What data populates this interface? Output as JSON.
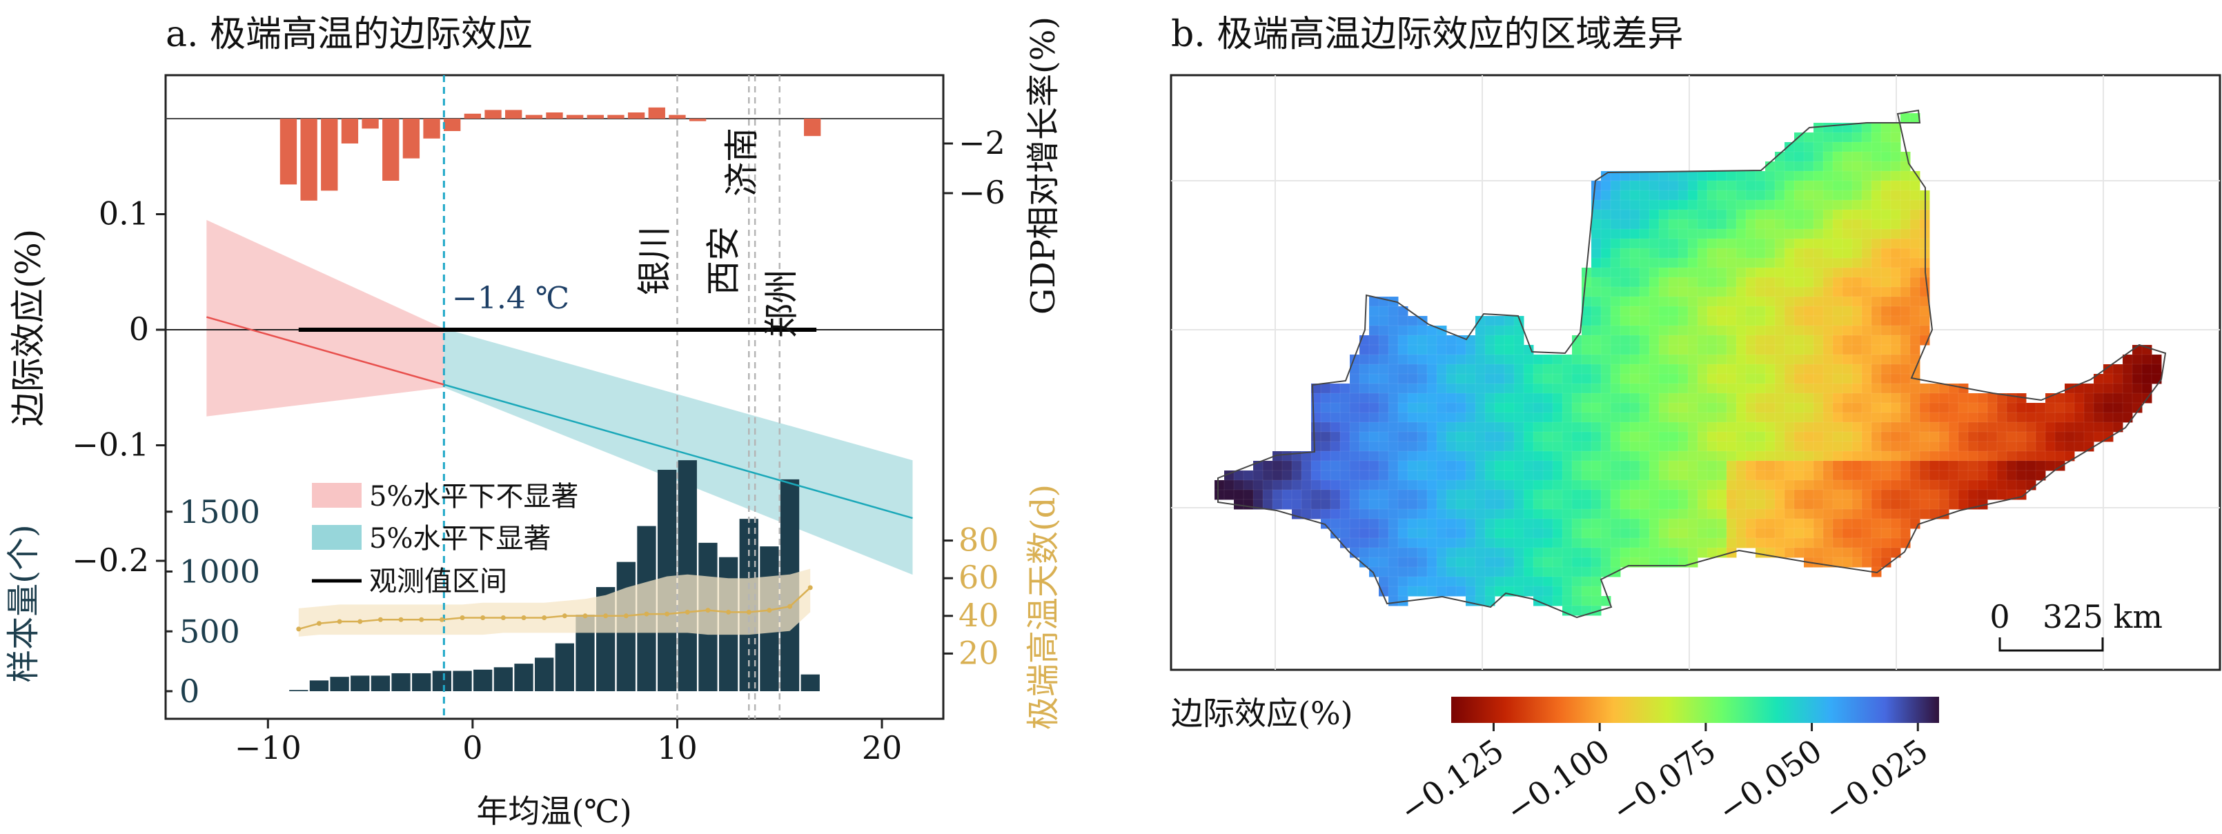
{
  "panel_a": {
    "title": "a. 极端高温的边际效应",
    "chart_data": [
      {
        "type": "line",
        "name": "marginal-effect",
        "xlabel": "年均温(℃)",
        "ylabel": "边际效应(%)",
        "xlim": [
          -15,
          23
        ],
        "ylim": [
          -0.32,
          0.19
        ],
        "x_ticks": [
          -10,
          0,
          10,
          20
        ],
        "x_tick_labels": [
          "−10",
          "0",
          "10",
          "20"
        ],
        "y_ticks": [
          0.1,
          0,
          -0.1,
          -0.2
        ],
        "y_tick_labels": [
          "0.1",
          "0",
          "−0.1",
          "−0.2"
        ],
        "fit_line": {
          "x": [
            -13,
            21.5
          ],
          "y": [
            0.011,
            -0.163
          ]
        },
        "threshold": {
          "x": -1.4,
          "label": "−1.4 ℃"
        },
        "ci_not_significant": {
          "x": [
            -13,
            -1.4
          ],
          "upper": [
            0.095,
            0.001
          ],
          "lower": [
            -0.075,
            -0.05
          ]
        },
        "ci_significant": {
          "x": [
            -1.4,
            21.5
          ],
          "upper": [
            0.001,
            -0.113
          ],
          "lower": [
            -0.05,
            -0.212
          ]
        },
        "observed_range": {
          "x": [
            -8.5,
            16.8
          ],
          "y": 0
        },
        "cities": [
          {
            "name": "银川",
            "x": 10.0
          },
          {
            "name": "西安",
            "x": 13.5
          },
          {
            "name": "济南",
            "x": 13.8
          },
          {
            "name": "郑州",
            "x": 15.0
          }
        ],
        "legend": [
          "5%水平下不显著",
          "5%水平下显著",
          "观测值区间"
        ],
        "colors": {
          "not_significant_fill": "#f8c5c5",
          "not_significant_line": "#e8504d",
          "significant_fill": "#b3dfe3",
          "significant_line": "#1ba8b9",
          "observed_line": "#000000",
          "threshold_line": "#20a8c8"
        }
      },
      {
        "type": "bar",
        "name": "gdp-growth",
        "ylabel": "GDP相对增长率(%)",
        "y_ticks": [
          -2,
          -6
        ],
        "y_tick_labels": [
          "−2",
          "−6"
        ],
        "x": [
          -9,
          -8,
          -7,
          -6,
          -5,
          -4,
          -3,
          -2,
          -1,
          0,
          1,
          2,
          3,
          4,
          5,
          6,
          7,
          8,
          9,
          10,
          11,
          16.6
        ],
        "values": [
          -5.3,
          -6.6,
          -5.8,
          -2.0,
          -0.8,
          -5.0,
          -3.2,
          -1.6,
          -1.0,
          0.4,
          0.7,
          0.7,
          0.3,
          0.5,
          0.3,
          0.3,
          0.3,
          0.5,
          0.9,
          0.3,
          -0.2,
          -1.4
        ],
        "color": "#e2654b"
      },
      {
        "type": "bar",
        "name": "sample-count",
        "ylabel": "样本量(个)",
        "y_ticks": [
          0,
          500,
          1000,
          1500
        ],
        "y_tick_labels": [
          "0",
          "500",
          "1000",
          "1500"
        ],
        "x": [
          -8.5,
          -7.5,
          -6.5,
          -5.5,
          -4.5,
          -3.5,
          -2.5,
          -1.5,
          -0.5,
          0.5,
          1.5,
          2.5,
          3.5,
          4.5,
          5.5,
          6.5,
          7.5,
          8.5,
          9.5,
          10.5,
          11.5,
          12.5,
          13.5,
          14.5,
          15.5,
          16.5
        ],
        "values": [
          10,
          90,
          120,
          130,
          130,
          150,
          150,
          170,
          170,
          180,
          200,
          230,
          280,
          400,
          640,
          870,
          1080,
          1380,
          1850,
          1930,
          1240,
          1120,
          1440,
          1210,
          1770,
          140
        ],
        "color": "#1d3e4d"
      },
      {
        "type": "line",
        "name": "extreme-heat-days",
        "ylabel": "极端高温天数(d)",
        "y_ticks": [
          20,
          40,
          60,
          80
        ],
        "y_tick_labels": [
          "20",
          "40",
          "60",
          "80"
        ],
        "x": [
          -8.5,
          -7.5,
          -6.5,
          -5.5,
          -4.5,
          -3.5,
          -2.5,
          -1.5,
          -0.5,
          0.5,
          1.5,
          2.5,
          3.5,
          4.5,
          5.5,
          6.5,
          7.5,
          8.5,
          9.5,
          10.5,
          11.5,
          12.5,
          13.5,
          14.5,
          15.5,
          16.5
        ],
        "values": [
          33,
          36,
          37,
          37,
          38,
          38,
          38,
          38,
          39,
          39,
          39,
          39,
          39,
          40,
          40,
          40,
          40,
          41,
          41,
          42,
          43,
          42,
          42,
          43,
          45,
          55
        ],
        "band_upper": [
          44,
          45,
          46,
          46,
          46,
          46,
          46,
          46,
          46,
          47,
          47,
          47,
          47,
          48,
          49,
          51,
          55,
          58,
          61,
          62,
          61,
          60,
          60,
          61,
          62,
          65
        ],
        "band_lower": [
          29,
          30,
          30,
          30,
          30,
          30,
          30,
          30,
          30,
          30,
          31,
          31,
          31,
          31,
          31,
          31,
          31,
          31,
          31,
          31,
          30,
          30,
          30,
          31,
          32,
          42
        ],
        "colors": {
          "line": "#d9b053",
          "band": "#f5e6c5"
        }
      }
    ]
  },
  "panel_b": {
    "title": "b. 极端高温边际效应的区域差异",
    "chart_data": {
      "type": "heatmap",
      "colorbar_label": "边际效应(%)",
      "colorbar_range": [
        -0.135,
        -0.02
      ],
      "colorbar_ticks": [
        -0.125,
        -0.1,
        -0.075,
        -0.05,
        -0.025
      ],
      "colorbar_tick_labels": [
        "−0.125",
        "−0.100",
        "−0.075",
        "−0.050",
        "−0.025"
      ],
      "colormap": [
        "#7a0403",
        "#c42503",
        "#f26c1d",
        "#fdbd3a",
        "#c8ef34",
        "#6afd6a",
        "#1ae4b6",
        "#35abf8",
        "#4669e0",
        "#30123b"
      ],
      "scale_bar": {
        "start": "0",
        "end": "325 km"
      }
    }
  }
}
